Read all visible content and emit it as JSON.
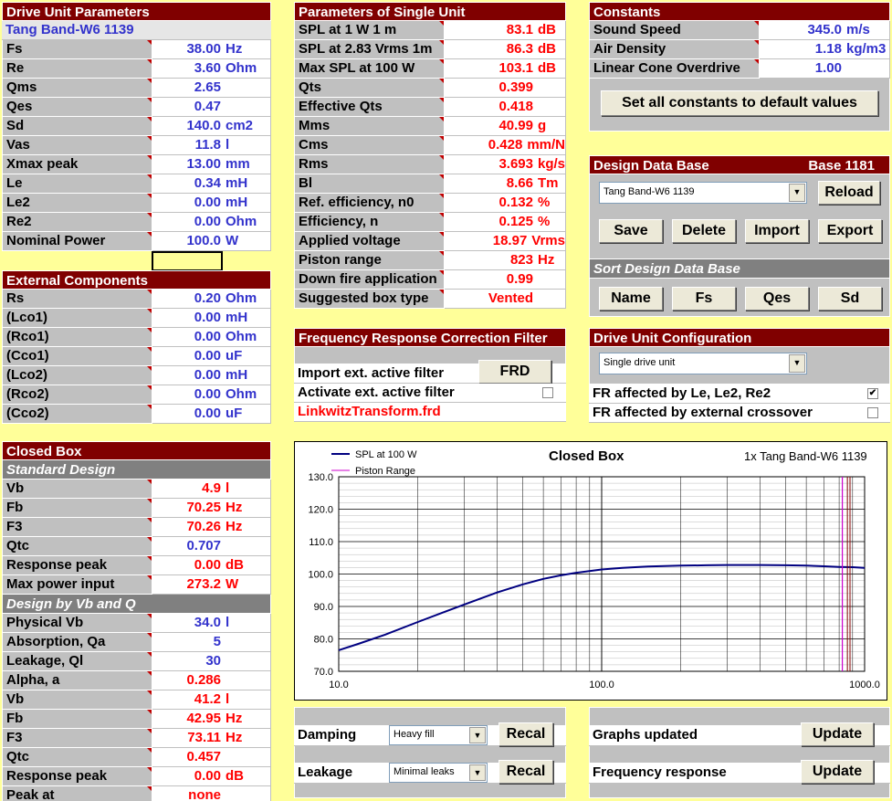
{
  "drive_unit": {
    "title": "Drive Unit Parameters",
    "name": "Tang Band-W6 1139",
    "rows": [
      {
        "label": "Fs",
        "value": "38.00",
        "unit": "Hz"
      },
      {
        "label": "Re",
        "value": "3.60",
        "unit": "Ohm"
      },
      {
        "label": "Qms",
        "value": "2.65",
        "unit": ""
      },
      {
        "label": "Qes",
        "value": "0.47",
        "unit": ""
      },
      {
        "label": "Sd",
        "value": "140.0",
        "unit": "cm2"
      },
      {
        "label": "Vas",
        "value": "11.8",
        "unit": "l"
      },
      {
        "label": "Xmax peak",
        "value": "13.00",
        "unit": "mm"
      },
      {
        "label": "Le",
        "value": "0.34",
        "unit": "mH"
      },
      {
        "label": "Le2",
        "value": "0.00",
        "unit": "mH"
      },
      {
        "label": "Re2",
        "value": "0.00",
        "unit": "Ohm"
      },
      {
        "label": "Nominal Power",
        "value": "100.0",
        "unit": "W"
      }
    ]
  },
  "external": {
    "title": "External Components",
    "rows": [
      {
        "label": "Rs",
        "value": "0.20",
        "unit": "Ohm"
      },
      {
        "label": "(Lco1)",
        "value": "0.00",
        "unit": "mH"
      },
      {
        "label": "(Rco1)",
        "value": "0.00",
        "unit": "Ohm"
      },
      {
        "label": "(Cco1)",
        "value": "0.00",
        "unit": "uF"
      },
      {
        "label": "(Lco2)",
        "value": "0.00",
        "unit": "mH"
      },
      {
        "label": "(Rco2)",
        "value": "0.00",
        "unit": "Ohm"
      },
      {
        "label": "(Cco2)",
        "value": "0.00",
        "unit": "uF"
      }
    ]
  },
  "closed_box": {
    "title": "Closed Box",
    "standard_title": "Standard Design",
    "standard_rows": [
      {
        "label": "Vb",
        "value": "4.9",
        "unit": "l",
        "color": "red"
      },
      {
        "label": "Fb",
        "value": "70.25",
        "unit": "Hz",
        "color": "red"
      },
      {
        "label": "F3",
        "value": "70.26",
        "unit": "Hz",
        "color": "red"
      },
      {
        "label": "Qtc",
        "value": "0.707",
        "unit": "",
        "color": "blue"
      },
      {
        "label": "Response peak",
        "value": "0.00",
        "unit": "dB",
        "color": "red"
      },
      {
        "label": "Max power input",
        "value": "273.2",
        "unit": "W",
        "color": "red"
      }
    ],
    "vbq_title": "Design by Vb and Q",
    "vbq_rows": [
      {
        "label": "Physical Vb",
        "value": "34.0",
        "unit": "l",
        "color": "blue"
      },
      {
        "label": "Absorption, Qa",
        "value": "5",
        "unit": "",
        "color": "blue"
      },
      {
        "label": "Leakage, Ql",
        "value": "30",
        "unit": "",
        "color": "blue"
      },
      {
        "label": "Alpha, a",
        "value": "0.286",
        "unit": "",
        "color": "red"
      },
      {
        "label": "Vb",
        "value": "41.2",
        "unit": "l",
        "color": "red"
      },
      {
        "label": "Fb",
        "value": "42.95",
        "unit": "Hz",
        "color": "red"
      },
      {
        "label": "F3",
        "value": "73.11",
        "unit": "Hz",
        "color": "red"
      },
      {
        "label": "Qtc",
        "value": "0.457",
        "unit": "",
        "color": "red"
      },
      {
        "label": "Response peak",
        "value": "0.00",
        "unit": "dB",
        "color": "red"
      },
      {
        "label": "Peak at",
        "value": "none",
        "unit": "",
        "color": "red"
      }
    ]
  },
  "single_unit": {
    "title": "Parameters of Single Unit",
    "rows": [
      {
        "label": "SPL at 1 W 1 m",
        "value": "83.1",
        "unit": "dB"
      },
      {
        "label": "SPL at 2.83 Vrms 1m",
        "value": "86.3",
        "unit": "dB"
      },
      {
        "label": "Max SPL at 100 W",
        "value": "103.1",
        "unit": "dB"
      },
      {
        "label": "Qts",
        "value": "0.399",
        "unit": ""
      },
      {
        "label": "Effective Qts",
        "value": "0.418",
        "unit": ""
      },
      {
        "label": "Mms",
        "value": "40.99",
        "unit": "g"
      },
      {
        "label": "Cms",
        "value": "0.428",
        "unit": "mm/N"
      },
      {
        "label": "Rms",
        "value": "3.693",
        "unit": "kg/s"
      },
      {
        "label": "Bl",
        "value": "8.66",
        "unit": "Tm"
      },
      {
        "label": "Ref. efficiency, n0",
        "value": "0.132",
        "unit": "%"
      },
      {
        "label": "Efficiency, n",
        "value": "0.125",
        "unit": "%"
      },
      {
        "label": "Applied voltage",
        "value": "18.97",
        "unit": "Vrms"
      },
      {
        "label": "Piston range",
        "value": "823",
        "unit": "Hz"
      },
      {
        "label": "Down fire application",
        "value": "0.99",
        "unit": ""
      },
      {
        "label": "Suggested box type",
        "value": "Vented",
        "unit": ""
      }
    ]
  },
  "constants": {
    "title": "Constants",
    "rows": [
      {
        "label": "Sound Speed",
        "value": "345.0",
        "unit": "m/s"
      },
      {
        "label": "Air Density",
        "value": "1.18",
        "unit": "kg/m3"
      },
      {
        "label": "Linear Cone Overdrive",
        "value": "1.00",
        "unit": ""
      }
    ],
    "default_button": "Set all constants to default values"
  },
  "database": {
    "title": "Design Data Base",
    "base_label": "Base",
    "base_count": "1181",
    "selected": "Tang Band-W6 1139",
    "reload": "Reload",
    "save": "Save",
    "delete": "Delete",
    "import": "Import",
    "export": "Export",
    "sort_title": "Sort Design Data Base",
    "sort_name": "Name",
    "sort_fs": "Fs",
    "sort_qes": "Qes",
    "sort_sd": "Sd"
  },
  "frcf": {
    "title": "Frequency Response Correction Filter",
    "import_label": "Import ext. active filter",
    "frd_button": "FRD",
    "activate_label": "Activate ext. active filter",
    "file": "LinkwitzTransform.frd"
  },
  "config": {
    "title": "Drive Unit Configuration",
    "selected": "Single drive unit",
    "fr_le": "FR affected by Le, Le2, Re2",
    "fr_le_checked": true,
    "fr_ext": "FR affected by external crossover",
    "fr_ext_checked": false
  },
  "chart_data": {
    "type": "line",
    "title": "Closed Box",
    "subtitle": "1x Tang Band-W6  1139",
    "x_scale": "log",
    "xlim": [
      10,
      1000
    ],
    "ylim": [
      70,
      130
    ],
    "x_ticks": [
      "10.0",
      "100.0",
      "1000.0"
    ],
    "y_ticks": [
      "70.0",
      "80.0",
      "90.0",
      "100.0",
      "110.0",
      "120.0",
      "130.0"
    ],
    "grid": true,
    "legend_position": "top-left",
    "series": [
      {
        "name": "SPL at 100 W",
        "color": "#000080",
        "x": [
          10,
          12,
          15,
          20,
          25,
          30,
          40,
          50,
          60,
          70,
          80,
          100,
          120,
          150,
          200,
          250,
          300,
          400,
          500,
          600,
          700,
          800,
          900,
          1000
        ],
        "y": [
          76.5,
          78.6,
          81.3,
          85.2,
          88.2,
          90.6,
          94.3,
          96.8,
          98.5,
          99.6,
          100.4,
          101.4,
          101.9,
          102.3,
          102.6,
          102.7,
          102.8,
          102.8,
          102.7,
          102.6,
          102.4,
          102.2,
          102.1,
          101.9
        ]
      },
      {
        "name": "Piston Range",
        "color": "#cc00cc",
        "x": [
          823,
          823
        ],
        "y": [
          70,
          130
        ]
      }
    ]
  },
  "bottom": {
    "damping_label": "Damping",
    "damping_value": "Heavy fill",
    "leakage_label": "Leakage",
    "leakage_value": "Minimal leaks",
    "recal": "Recal",
    "graphs_label": "Graphs updated",
    "freq_label": "Frequency response",
    "update": "Update"
  }
}
